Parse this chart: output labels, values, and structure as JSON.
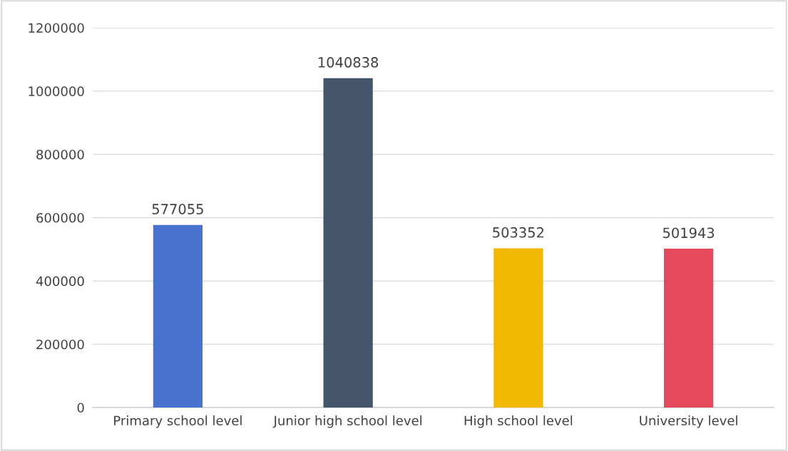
{
  "chart_data": {
    "type": "bar",
    "categories": [
      "Primary school level",
      "Junior high school level",
      "High school level",
      "University level"
    ],
    "values": [
      577055,
      1040838,
      503352,
      501943
    ],
    "colors": [
      "#4874cf",
      "#44546a",
      "#f2b800",
      "#e44a5c"
    ],
    "ylim": [
      0,
      1200000
    ],
    "yticks": [
      0,
      200000,
      400000,
      600000,
      800000,
      1000000,
      1200000
    ],
    "grid": "y",
    "data_labels": true
  }
}
